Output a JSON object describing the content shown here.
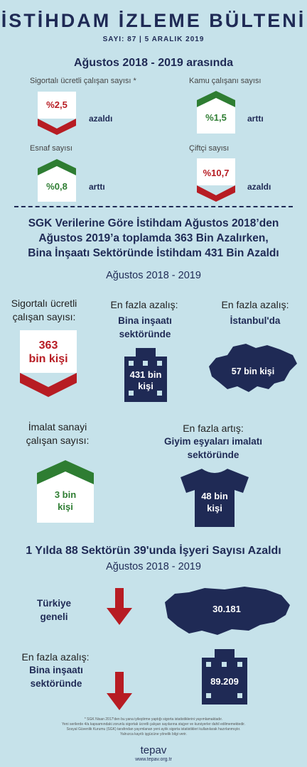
{
  "header": {
    "title": "İSTİHDAM İZLEME BÜLTENİ",
    "issue": "SAYI: 87 | 5 ARALIK 2019"
  },
  "section1": {
    "heading": "Ağustos 2018 - 2019 arasında",
    "items": [
      {
        "label": "Sigortalı ücretli çalışan sayısı *",
        "value": "%2,5",
        "trend": "azaldı"
      },
      {
        "label": "Kamu çalışanı sayısı",
        "value": "%1,5",
        "trend": "arttı"
      },
      {
        "label": "Esnaf sayısı",
        "value": "%0,8",
        "trend": "arttı"
      },
      {
        "label": "Çiftçi sayısı",
        "value": "%10,7",
        "trend": "azaldı"
      }
    ]
  },
  "section2": {
    "heading_line1": "SGK Verilerine Göre İstihdam Ağustos 2018’den",
    "heading_line2": "Ağustos 2019’a toplamda 363 Bin Azalırken,",
    "heading_line3": "Bina İnşaatı Sektöründe İstihdam 431 Bin Azaldı",
    "period": "Ağustos 2018 - 2019",
    "card1": {
      "label_line1": "Sigortalı ücretli",
      "label_line2": "çalışan sayısı:",
      "value_line1": "363",
      "value_line2": "bin kişi"
    },
    "card2": {
      "label": "En fazla azalış:",
      "sector_line1": "Bina inşaatı",
      "sector_line2": "sektöründe",
      "value_line1": "431 bin",
      "value_line2": "kişi"
    },
    "card3": {
      "label": "En fazla azalış:",
      "place": "İstanbul'da",
      "value": "57 bin kişi"
    },
    "card4": {
      "label_line1": "İmalat sanayi",
      "label_line2": "çalışan sayısı:",
      "value_line1": "3 bin",
      "value_line2": "kişi"
    },
    "card5": {
      "label": "En fazla artış:",
      "sector_line1": "Giyim eşyaları imalatı",
      "sector_line2": "sektöründe",
      "value_line1": "48 bin",
      "value_line2": "kişi"
    }
  },
  "section3": {
    "heading": "1 Yılda 88 Sektörün 39'unda İşyeri Sayısı Azaldı",
    "period": "Ağustos 2018 - 2019",
    "row1": {
      "label_line1": "Türkiye",
      "label_line2": "geneli",
      "value": "30.181"
    },
    "row2": {
      "label": "En fazla azalış:",
      "sector_line1": "Bina inşaatı",
      "sector_line2": "sektöründe",
      "value": "89.209"
    }
  },
  "footer": {
    "note1": "* SGK Nisan 2017'den bu yana iyileştirme yaptığı sigorta istatistiklerini yayımlamaktadır.",
    "note2": "Yeni serilerde 4/a kapsamındaki zorunlu sigortalı ücretli çalışan sayılarına stajyer ve kursiyerler dahil edilmemektedir.",
    "note3": "Sosyal Güvenlik Kurumu (SGK) tarafından yayımlanan yeni aylık sigorta istatistikleri kullanılarak hazırlanmıştır.",
    "note4": "Yalnızca kayıtlı işgücüne yönelik bilgi verir.",
    "brand": "tepav",
    "url": "www.tepav.org.tr"
  },
  "colors": {
    "navy": "#1f2a55",
    "red": "#b71c23",
    "green": "#2e7d32",
    "background": "#c6e2ea"
  }
}
